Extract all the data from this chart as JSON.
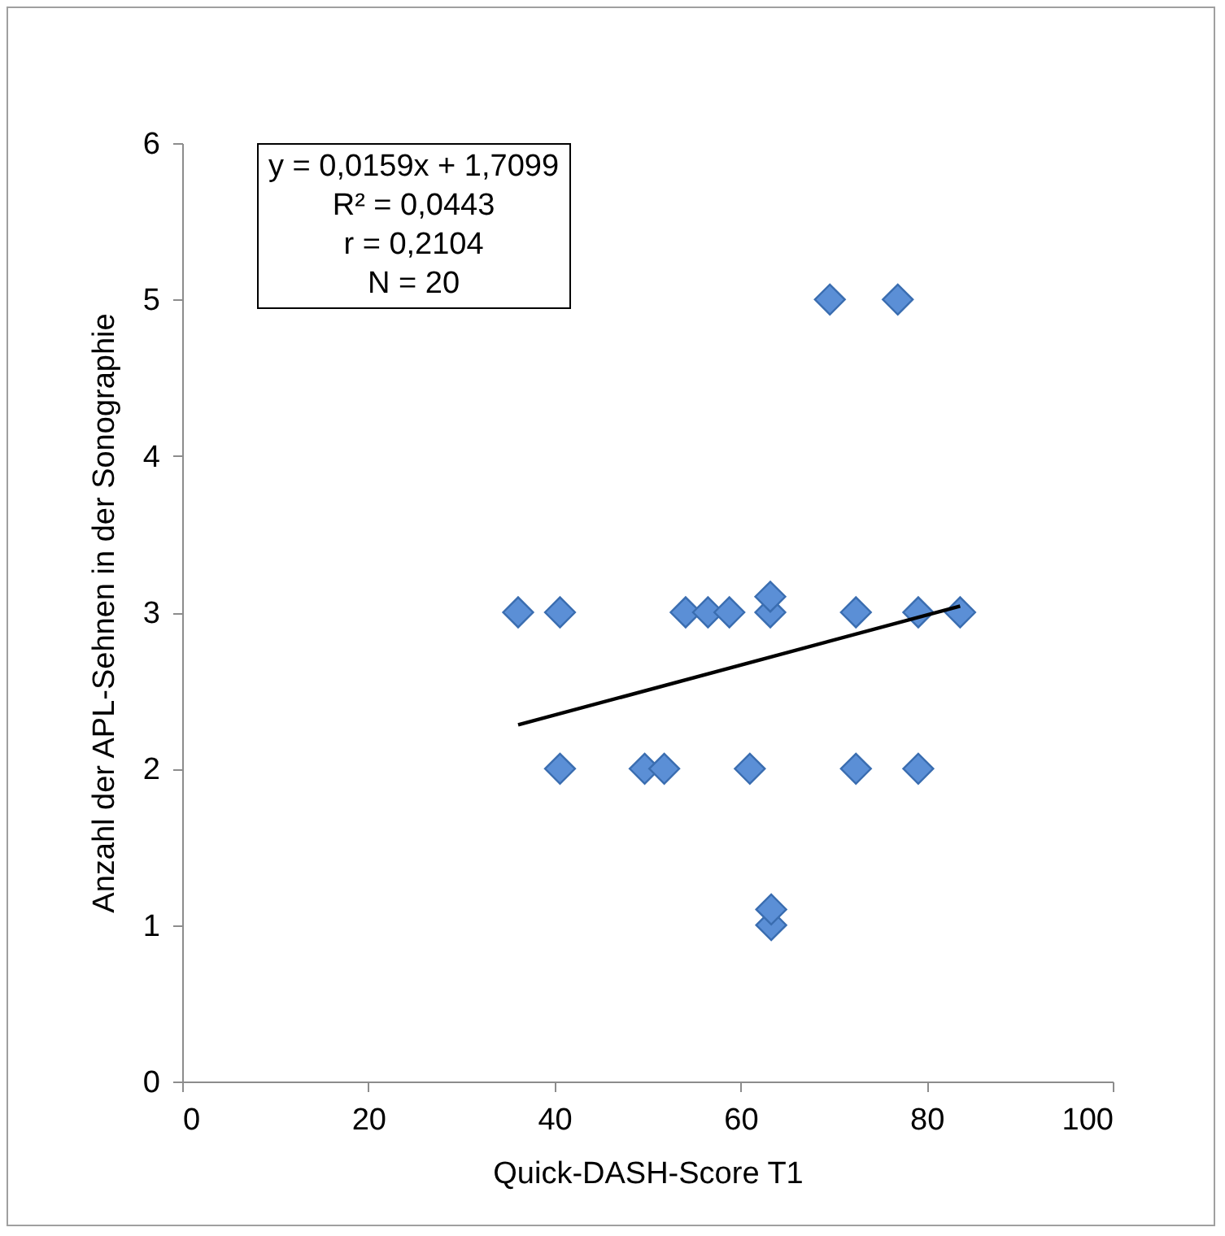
{
  "chart_data": {
    "type": "scatter",
    "xlabel": "Quick-DASH-Score T1",
    "ylabel": "Anzahl der APL-Sehnen in der Sonographie",
    "annotations": [
      "y = 0,0159x + 1,7099",
      "R² = 0,0443",
      "r = 0,2104",
      "N = 20"
    ],
    "series": [
      {
        "marker": "diamond",
        "color": "#5b8fd6",
        "x": [
          36.1,
          40.6,
          54.1,
          56.5,
          58.8,
          63.2,
          63.2,
          72.4,
          79.1,
          83.6,
          40.6,
          49.7,
          51.8,
          61.0,
          72.4,
          79.1,
          69.6,
          76.9,
          63.3,
          63.3
        ],
        "values": [
          3,
          3,
          3,
          3,
          3,
          3,
          3.1,
          3,
          3,
          3,
          2,
          2,
          2,
          2,
          2,
          2,
          5,
          5,
          1,
          1.1
        ]
      },
      {
        "type": "line",
        "color": "#000000",
        "x": [
          36.1,
          83.6
        ],
        "values": [
          2.28,
          3.04
        ]
      }
    ],
    "xlim": [
      0,
      100
    ],
    "xticks": [
      0,
      20,
      40,
      60,
      80,
      100
    ],
    "ylim": [
      0,
      6
    ],
    "yticks": [
      0,
      1,
      2,
      3,
      4,
      5,
      6
    ],
    "grid": false
  }
}
